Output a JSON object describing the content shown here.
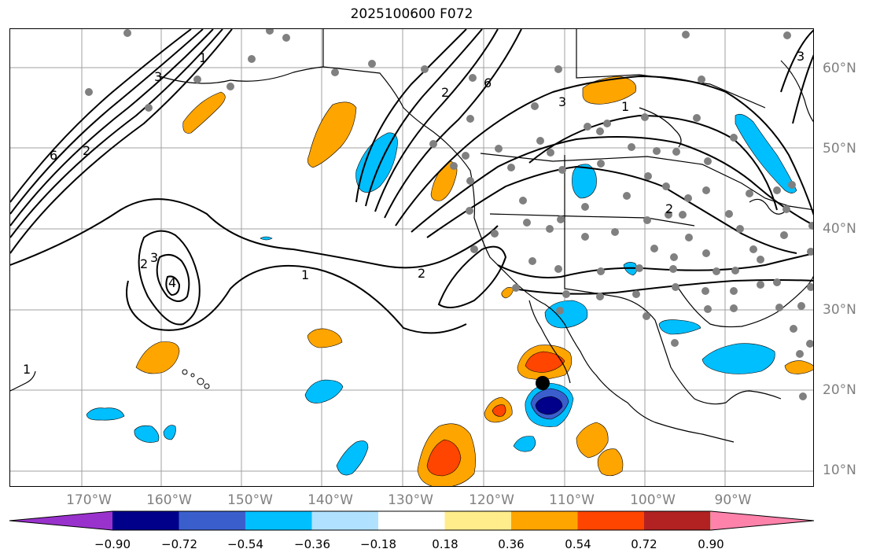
{
  "title": "2025100600 F072",
  "lat_labels": [
    "60°N",
    "50°N",
    "40°N",
    "30°N",
    "20°N",
    "10°N"
  ],
  "lon_labels": [
    "170°W",
    "160°W",
    "150°W",
    "140°W",
    "130°W",
    "120°W",
    "110°W",
    "100°W",
    "90°W"
  ],
  "colorbar": {
    "colors": [
      "#9932cc",
      "#00008b",
      "#3a5fcd",
      "#00bfff",
      "#b0e2ff",
      "#ffffff",
      "#ffec8b",
      "#ffa500",
      "#ff4500",
      "#b22222",
      "#ff82ab"
    ],
    "ticks": [
      "−0.90",
      "−0.72",
      "−0.54",
      "−0.36",
      "−0.18",
      "0.18",
      "0.36",
      "0.54",
      "0.72",
      "0.90"
    ]
  },
  "contour_labels": [
    "1",
    "1",
    "1",
    "2",
    "2",
    "2",
    "3",
    "3",
    "4",
    "6",
    "2",
    "3",
    "1",
    "3",
    "6",
    "2"
  ],
  "colors": {
    "land": "#000000",
    "grid": "#a0a0a0",
    "station": "#808080",
    "marker": "#000000"
  }
}
